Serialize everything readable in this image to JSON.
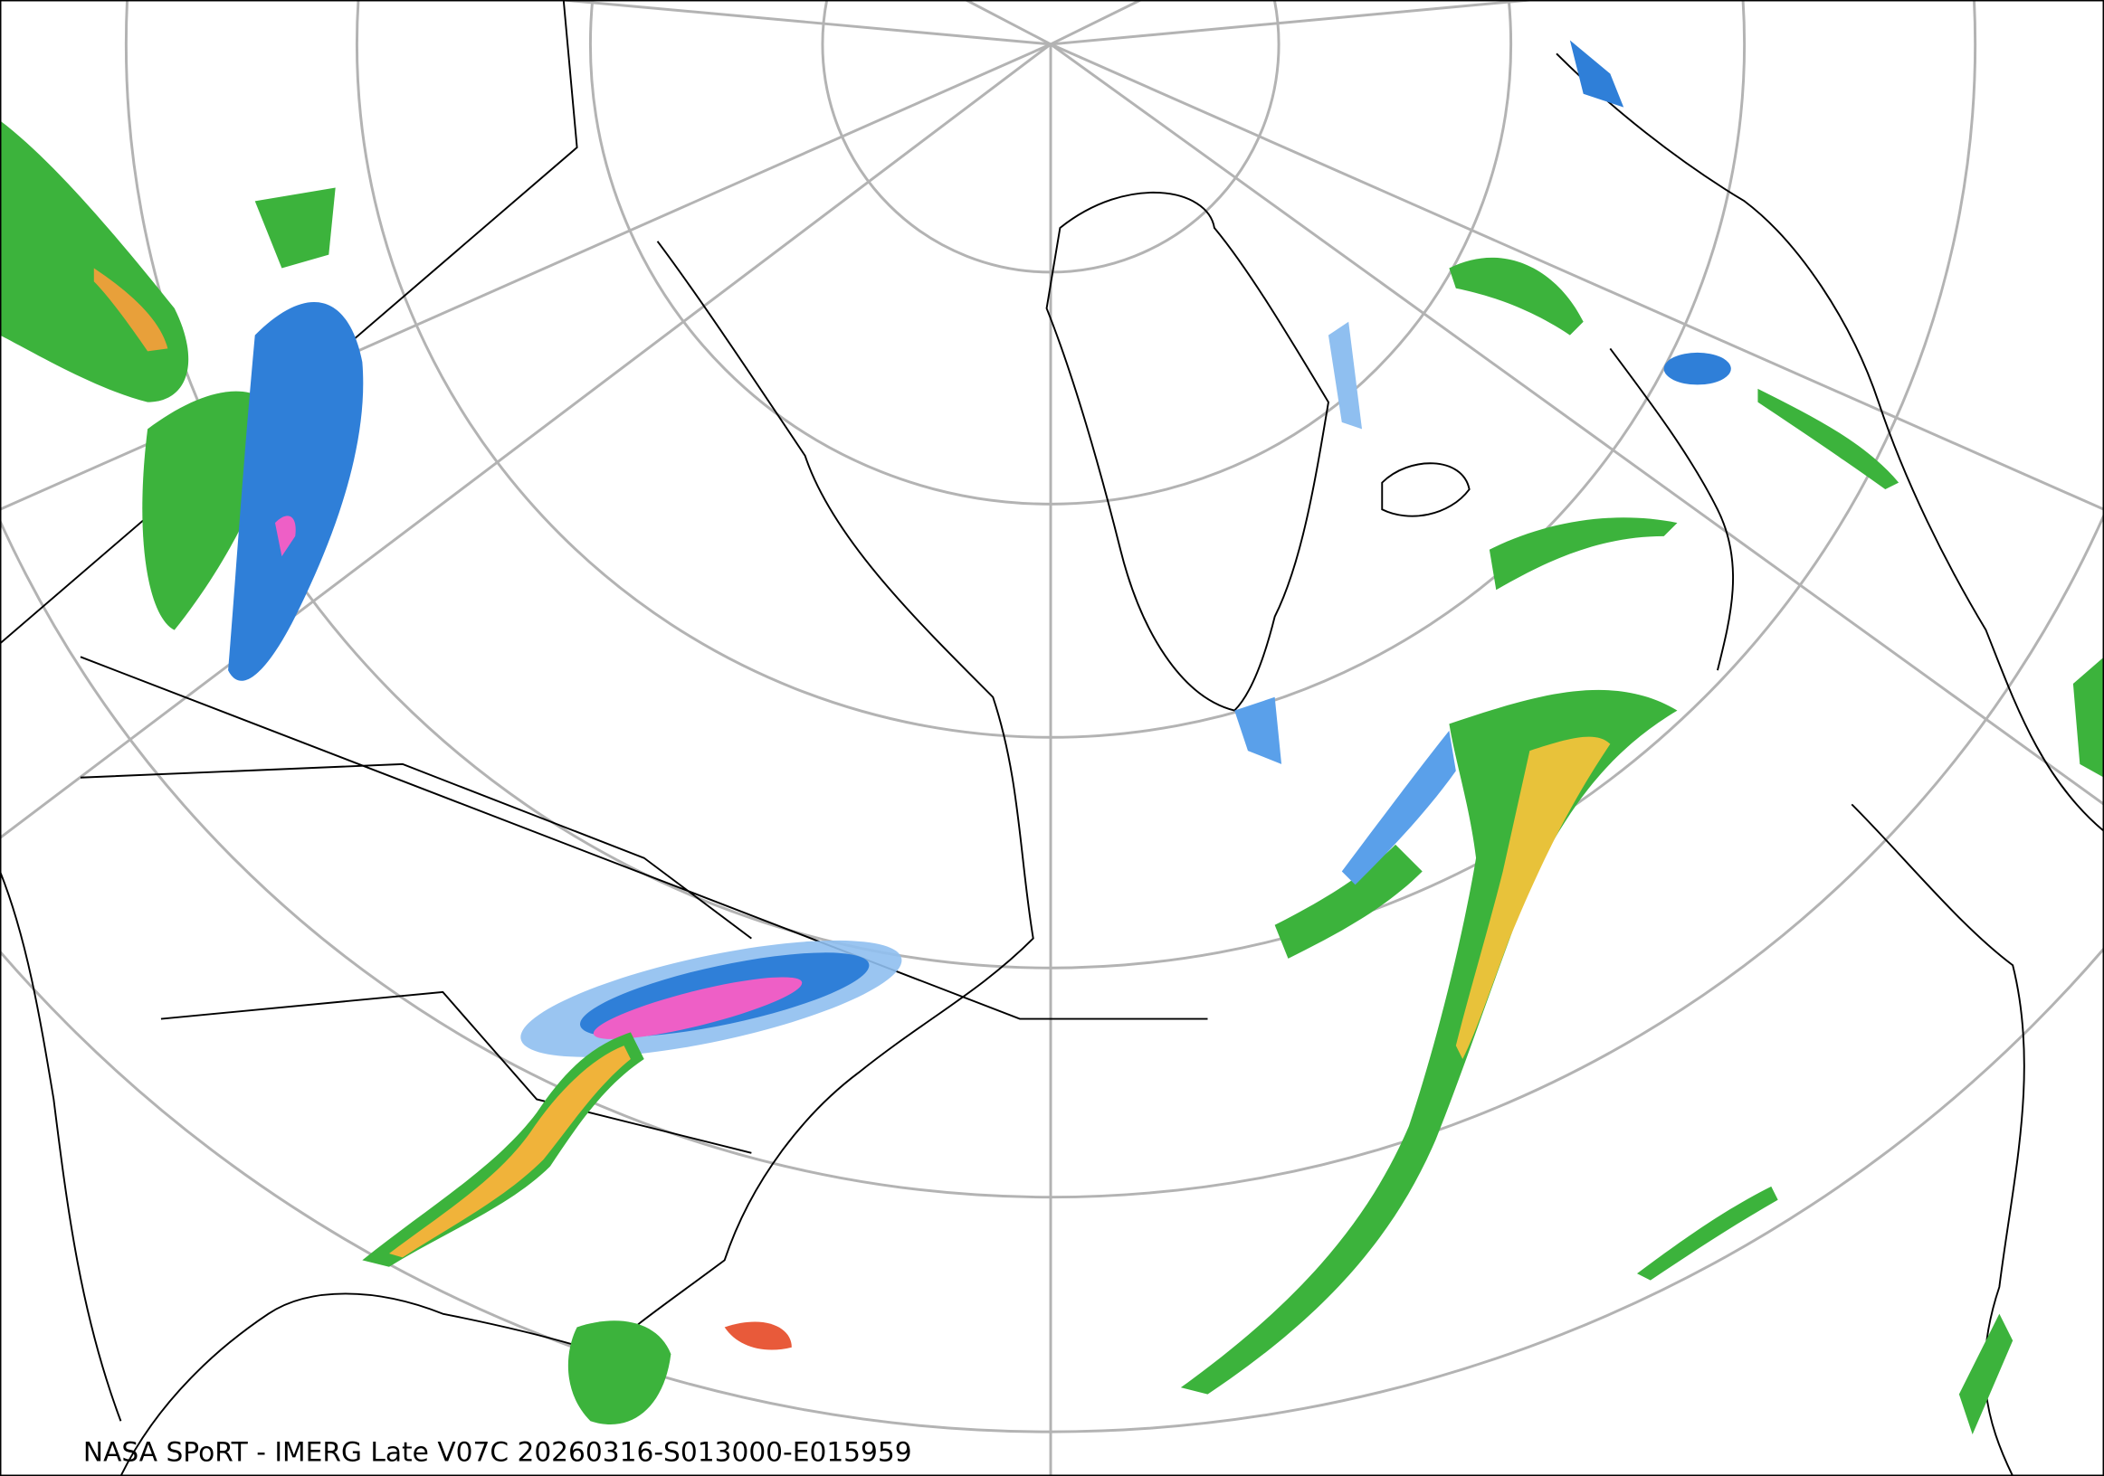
{
  "caption": "NASA SPoRT - IMERG Late V07C 20260316-S013000-E015959"
}
